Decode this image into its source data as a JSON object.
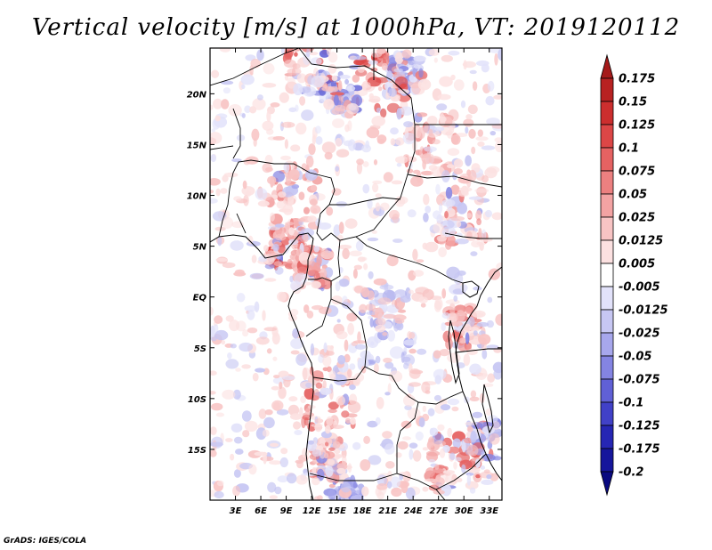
{
  "title": "Vertical velocity [m/s] at 1000hPa, VT: 2019120112",
  "credit": "GrADS: IGES/COLA",
  "colors": {
    "frame": "#000000",
    "coast": "#000000",
    "positive_shade": "#f4a6a6",
    "negative_shade": "#b9b9f0"
  },
  "chart_data": {
    "type": "heatmap",
    "title": "Vertical velocity [m/s] at 1000hPa, VT: 2019120112",
    "variable": "vertical velocity",
    "units": "m/s",
    "level": "1000hPa",
    "valid_time": "2019120112",
    "lon_range": [
      0,
      34.5
    ],
    "lat_range": [
      -20,
      24.5
    ],
    "x_ticks": [
      {
        "value": 3,
        "label": "3E"
      },
      {
        "value": 6,
        "label": "6E"
      },
      {
        "value": 9,
        "label": "9E"
      },
      {
        "value": 12,
        "label": "12E"
      },
      {
        "value": 15,
        "label": "15E"
      },
      {
        "value": 18,
        "label": "18E"
      },
      {
        "value": 21,
        "label": "21E"
      },
      {
        "value": 24,
        "label": "24E"
      },
      {
        "value": 27,
        "label": "27E"
      },
      {
        "value": 30,
        "label": "30E"
      },
      {
        "value": 33,
        "label": "33E"
      }
    ],
    "y_ticks": [
      {
        "value": 20,
        "label": "20N"
      },
      {
        "value": 15,
        "label": "15N"
      },
      {
        "value": 10,
        "label": "10N"
      },
      {
        "value": 5,
        "label": "5N"
      },
      {
        "value": 0,
        "label": "EQ"
      },
      {
        "value": -5,
        "label": "5S"
      },
      {
        "value": -10,
        "label": "10S"
      },
      {
        "value": -15,
        "label": "15S"
      }
    ],
    "colorbar": {
      "labels": [
        "0.175",
        "0.15",
        "0.125",
        "0.1",
        "0.075",
        "0.05",
        "0.025",
        "0.0125",
        "0.005",
        "-0.005",
        "-0.0125",
        "-0.025",
        "-0.05",
        "-0.075",
        "-0.1",
        "-0.125",
        "-0.175",
        "-0.2"
      ],
      "colors": [
        "#a51a1a",
        "#b82222",
        "#cc2e2e",
        "#dc4646",
        "#e56262",
        "#ec8080",
        "#f3a3a3",
        "#f8c4c4",
        "#fce1e1",
        "#ffffff",
        "#e2e2fa",
        "#c7c7f3",
        "#a7a7ec",
        "#8484e2",
        "#6060d6",
        "#4141c8",
        "#2626b4",
        "#16169c",
        "#0a0a80"
      ]
    }
  }
}
